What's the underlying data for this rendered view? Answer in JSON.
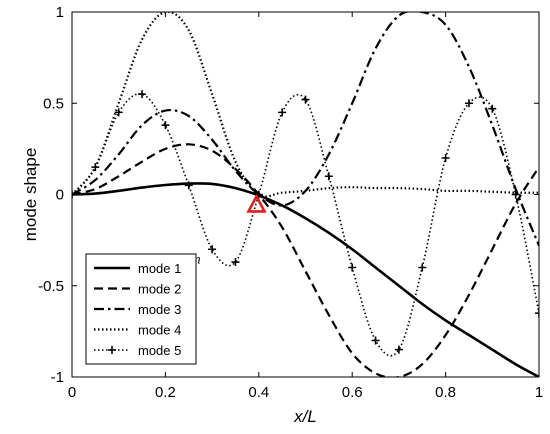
{
  "chart_data": {
    "type": "line",
    "title": "",
    "xlabel": "x/L",
    "ylabel": "mode shape",
    "xlim": [
      0,
      1
    ],
    "ylim": [
      -1,
      1
    ],
    "xticks": [
      "0",
      "0.2",
      "0.4",
      "0.6",
      "0.8",
      "1"
    ],
    "yticks": [
      "-1",
      "-0.5",
      "0",
      "0.5",
      "1"
    ],
    "grid": false,
    "legend_position": "bottom-left",
    "colors": {
      "series": "#000000",
      "marker": "#e0201b"
    },
    "series": [
      {
        "name": "mode 1",
        "style": "solid",
        "x": [
          0,
          0.05,
          0.1,
          0.15,
          0.2,
          0.25,
          0.3,
          0.35,
          0.4,
          0.45,
          0.5,
          0.55,
          0.6,
          0.65,
          0.7,
          0.75,
          0.8,
          0.85,
          0.9,
          0.95,
          1
        ],
        "y": [
          0,
          0.005,
          0.02,
          0.038,
          0.052,
          0.06,
          0.058,
          0.035,
          -0.005,
          -0.06,
          -0.13,
          -0.21,
          -0.3,
          -0.4,
          -0.5,
          -0.6,
          -0.69,
          -0.77,
          -0.85,
          -0.93,
          -1.0
        ]
      },
      {
        "name": "mode 2",
        "style": "dashed",
        "x": [
          0,
          0.05,
          0.1,
          0.15,
          0.2,
          0.25,
          0.3,
          0.35,
          0.4,
          0.45,
          0.5,
          0.55,
          0.6,
          0.65,
          0.7,
          0.75,
          0.8,
          0.85,
          0.9,
          0.95,
          1
        ],
        "y": [
          0,
          0.03,
          0.1,
          0.18,
          0.25,
          0.275,
          0.24,
          0.14,
          0.0,
          -0.18,
          -0.42,
          -0.66,
          -0.87,
          -0.98,
          -1.0,
          -0.93,
          -0.77,
          -0.55,
          -0.3,
          -0.05,
          0.15
        ]
      },
      {
        "name": "mode 3",
        "style": "dashdot",
        "x": [
          0,
          0.05,
          0.1,
          0.15,
          0.2,
          0.25,
          0.3,
          0.35,
          0.4,
          0.45,
          0.5,
          0.55,
          0.6,
          0.65,
          0.7,
          0.75,
          0.8,
          0.85,
          0.9,
          0.95,
          1
        ],
        "y": [
          0,
          0.08,
          0.22,
          0.38,
          0.46,
          0.43,
          0.3,
          0.13,
          0.0,
          -0.06,
          0.02,
          0.22,
          0.5,
          0.8,
          0.98,
          1.0,
          0.93,
          0.7,
          0.38,
          0.03,
          -0.28
        ]
      },
      {
        "name": "mode 4",
        "style": "dotted",
        "x": [
          0,
          0.05,
          0.1,
          0.15,
          0.2,
          0.25,
          0.3,
          0.35,
          0.4,
          0.45,
          0.5,
          0.55,
          0.6,
          0.65,
          0.7,
          0.75,
          0.8,
          0.85,
          0.9,
          0.95,
          1
        ],
        "y": [
          0,
          0.15,
          0.5,
          0.85,
          1.0,
          0.9,
          0.55,
          0.18,
          0.0,
          0.01,
          0.02,
          0.035,
          0.04,
          0.035,
          0.035,
          0.03,
          0.02,
          0.02,
          0.015,
          0.01,
          0.01
        ]
      },
      {
        "name": "mode 5",
        "style": "dotted-plus",
        "x": [
          0,
          0.05,
          0.1,
          0.15,
          0.2,
          0.25,
          0.3,
          0.35,
          0.4,
          0.45,
          0.5,
          0.55,
          0.6,
          0.65,
          0.7,
          0.75,
          0.8,
          0.85,
          0.9,
          0.95,
          1
        ],
        "y": [
          0,
          0.15,
          0.45,
          0.55,
          0.38,
          0.05,
          -0.3,
          -0.37,
          0.0,
          0.45,
          0.52,
          0.1,
          -0.4,
          -0.8,
          -0.85,
          -0.4,
          0.2,
          0.5,
          0.47,
          0.0,
          -0.65
        ]
      }
    ],
    "annotations": [
      {
        "text": "a = 200 mm",
        "x": 0.395,
        "y": -0.06,
        "marker": "red-triangle"
      }
    ]
  }
}
